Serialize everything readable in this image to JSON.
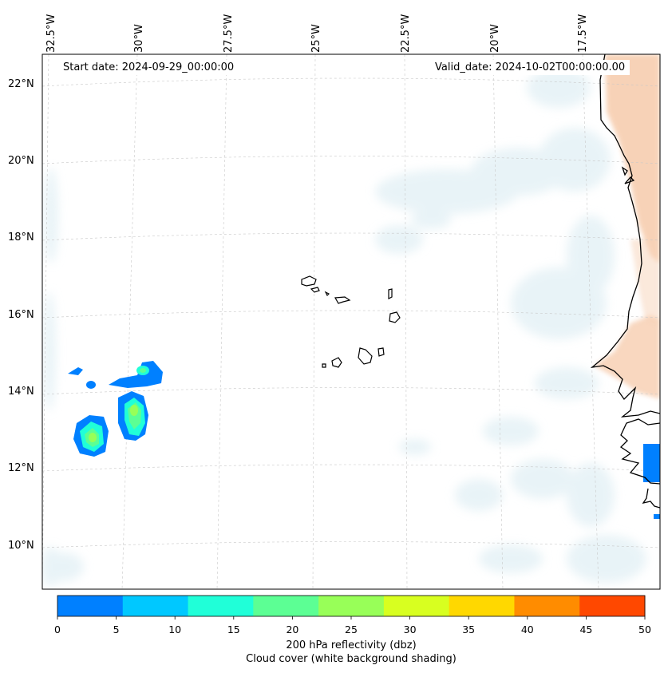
{
  "map": {
    "start_date": "Start date: 2024-09-29_00:00:00",
    "valid_date": "Valid_date: 2024-10-02T00:00:00.00",
    "lon_labels": [
      "32.5°W",
      "30°W",
      "27.5°W",
      "25°W",
      "22.5°W",
      "20°W",
      "17.5°W"
    ],
    "lat_labels": [
      "22°N",
      "20°N",
      "18°N",
      "16°N",
      "14°N",
      "12°N",
      "10°N"
    ],
    "colorbar": {
      "ticks": [
        "0",
        "5",
        "10",
        "15",
        "20",
        "25",
        "30",
        "35",
        "40",
        "45",
        "50"
      ],
      "colors": [
        "#0080ff",
        "#00c8ff",
        "#20ffd8",
        "#5cff94",
        "#98ff58",
        "#d8ff20",
        "#ffd800",
        "#ff8c00",
        "#ff4800"
      ],
      "label_line1": "200 hPa reflectivity (dbz)",
      "label_line2": "Cloud cover (white background shading)"
    },
    "colors": {
      "land_warm": "#f6c8a6",
      "cloud_tint": "#d7eaf1",
      "coast": "#000000",
      "grid": "#c8c8c8"
    }
  }
}
